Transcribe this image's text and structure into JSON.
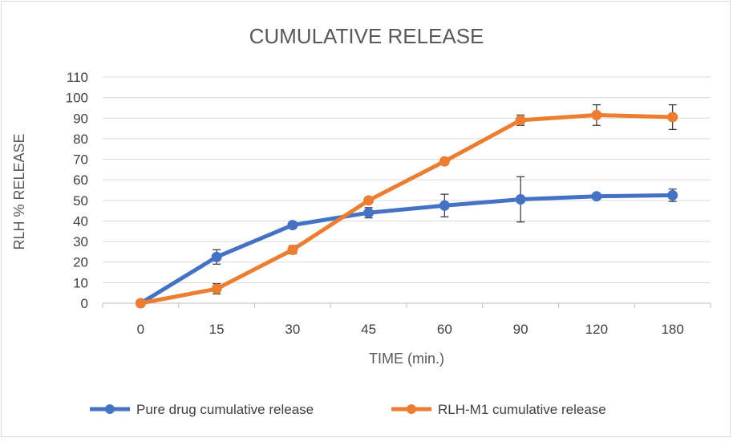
{
  "chart_data": {
    "type": "line",
    "title": "CUMULATIVE RELEASE",
    "xlabel": "TIME (min.)",
    "ylabel": "RLH % RELEASE",
    "categories": [
      "0",
      "15",
      "30",
      "45",
      "60",
      "90",
      "120",
      "180"
    ],
    "yticks": [
      "0",
      "10",
      "20",
      "30",
      "40",
      "50",
      "60",
      "70",
      "80",
      "90",
      "100",
      "110"
    ],
    "ylim": [
      0,
      110
    ],
    "grid": true,
    "legend_position": "bottom",
    "series": [
      {
        "name": "Pure drug cumulative release",
        "color": "#4472C4",
        "values": [
          0,
          22.5,
          38,
          44,
          47.5,
          50.5,
          52,
          52.5
        ],
        "error": [
          0,
          3.5,
          1.5,
          2.5,
          5.5,
          11,
          1,
          3
        ]
      },
      {
        "name": "RLH-M1 cumulative release",
        "color": "#ED7D31",
        "values": [
          0,
          7,
          26,
          50,
          69,
          89,
          91.5,
          90.5
        ],
        "error": [
          0,
          2.5,
          2,
          1,
          1,
          2.5,
          5,
          6
        ]
      }
    ]
  }
}
